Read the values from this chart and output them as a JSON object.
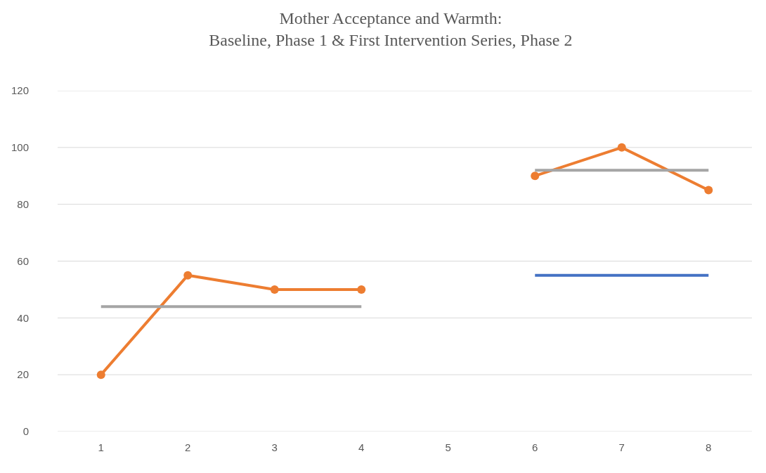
{
  "chart_data": {
    "type": "line",
    "title": "Mother Acceptance and Warmth:\nBaseline, Phase 1 & First Intervention Series, Phase 2",
    "categories": [
      "1",
      "2",
      "3",
      "4",
      "5",
      "6",
      "7",
      "8"
    ],
    "series": [
      {
        "color": "#ed7d31",
        "values": [
          20,
          55,
          50,
          50,
          null,
          90,
          100,
          85
        ]
      },
      {
        "color": "#a5a5a5",
        "marker": "none",
        "values": [
          44,
          44,
          44,
          44,
          null,
          92,
          92,
          92
        ]
      },
      {
        "color": "#4472c4",
        "marker": "none",
        "values": [
          null,
          null,
          null,
          null,
          null,
          55,
          55,
          55
        ]
      }
    ],
    "ylim": [
      0,
      120
    ],
    "yticks": [
      0,
      20,
      40,
      60,
      80,
      100,
      120
    ],
    "grid": "y",
    "marker": "circle",
    "line_style": "solid"
  }
}
